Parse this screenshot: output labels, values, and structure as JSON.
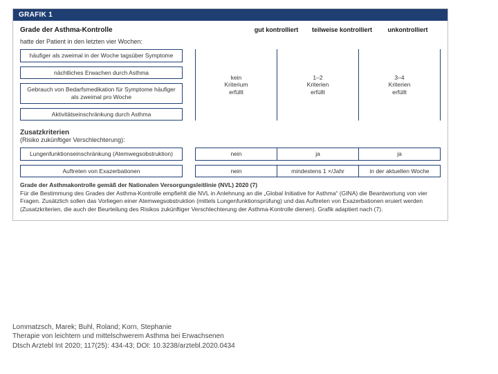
{
  "figure": {
    "header": "GRAFIK 1",
    "block_title": "Grade der Asthma-Kontrolle",
    "columns": {
      "c1": "gut kontrolliert",
      "c2": "teilweise kontrolliert",
      "c3": "unkontrolliert"
    },
    "subline": "hatte der Patient in den letzten vier Wochen:",
    "criteria": {
      "r1": "häufiger als zweimal in der Woche tagsüber Symptome",
      "r2": "nächtliches Erwachen durch Asthma",
      "r3": "Gebrauch von Bedarfsmedikation für Symptome häufiger als zweimal pro Woche",
      "r4": "Aktivitätseinschränkung durch Asthma"
    },
    "group_values": {
      "v1": "kein\nKriterium\nerfüllt",
      "v2": "1–2\nKriterien\nerfüllt",
      "v3": "3–4\nKriterien\nerfüllt"
    },
    "extra": {
      "title": "Zusatzkriterien",
      "sub": "(Risiko zukünftiger Verschlechterung):",
      "rows": {
        "a": {
          "label": "Lungenfunktionseinschränkung (Atemwegsobstruktion)",
          "v1": "nein",
          "v2": "ja",
          "v3": "ja"
        },
        "b": {
          "label": "Auftreten von Exazerbationen",
          "v1": "nein",
          "v2": "mindestens 1 ×/Jahr",
          "v3": "in der aktuellen Woche"
        }
      }
    },
    "caption": {
      "title": "Grade der Asthmakontrolle gemäß der Nationalen Versorgungsleitlinie (NVL) 2020 (7)",
      "body": "Für die Bestimmung des Grades der Asthma-Kontrolle empfiehlt die NVL in Anlehnung an die „Global Initiative for Asthma“ (GINA) die Beantwortung von vier Fragen. Zusätzlich sollen das Vorliegen einer Atemwegsobstruktion (mittels Lungenfunktionsprüfung) und das Auftreten von Exazerbationen eruiert werden (Zusatzkriterien, die auch der Beurteilung des Risikos zukünftiger Verschlechterung der Asthma-Kontrolle dienen). Grafik adaptiert nach (7)."
    }
  },
  "citation": {
    "authors": "Lommatzsch, Marek; Buhl, Roland; Korn, Stephanie",
    "title": "Therapie von leichtem und mittelschwerem Asthma bei Erwachsenen",
    "ref": "Dtsch Arztebl Int 2020; 117(25): 434-43; DOI: 10.3238/arztebl.2020.0434"
  },
  "colors": {
    "header_bg": "#1f3f73",
    "border": "#1f3f73",
    "outer_border": "#bfbfbf",
    "text": "#333333",
    "white": "#ffffff"
  }
}
